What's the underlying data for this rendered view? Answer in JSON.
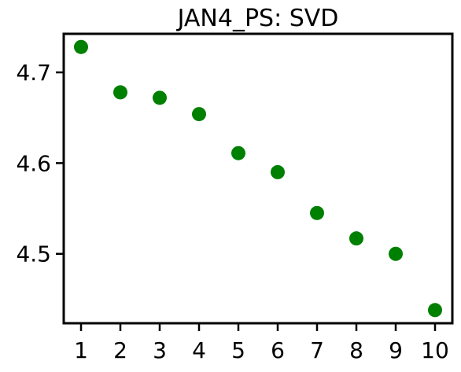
{
  "chart_data": {
    "type": "scatter",
    "title": "JAN4_PS: SVD",
    "xlabel": "",
    "ylabel": "",
    "x": [
      1,
      2,
      3,
      4,
      5,
      6,
      7,
      8,
      9,
      10
    ],
    "y": [
      4.728,
      4.678,
      4.672,
      4.654,
      4.611,
      4.59,
      4.545,
      4.517,
      4.5,
      4.438
    ],
    "xticks": [
      1,
      2,
      3,
      4,
      5,
      6,
      7,
      8,
      9,
      10
    ],
    "yticks": [
      4.5,
      4.6,
      4.7
    ],
    "ytick_labels": [
      "4.5",
      "4.6",
      "4.7"
    ],
    "xlim": [
      0.56,
      10.44
    ],
    "ylim": [
      4.4235,
      4.7425
    ],
    "grid": false,
    "marker_color": "#008000"
  }
}
